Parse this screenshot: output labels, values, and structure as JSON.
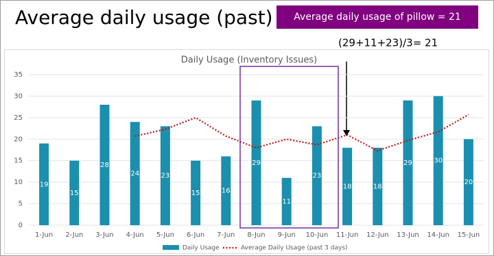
{
  "page_title": "Average daily usage (past)",
  "callout": "Average daily usage of pillow = 21",
  "annotation": "(29+11+23)/3= 21",
  "chart_data": {
    "type": "bar",
    "title": "Daily Usage (Inventory Issues)",
    "categories": [
      "1-Jun",
      "2-Jun",
      "3-Jun",
      "4-Jun",
      "5-Jun",
      "6-Jun",
      "7-Jun",
      "8-Jun",
      "9-Jun",
      "10-Jun",
      "11-Jun",
      "12-Jun",
      "13-Jun",
      "14-Jun",
      "15-Jun"
    ],
    "series": [
      {
        "name": "Daily Usage",
        "type": "bar",
        "color": "#1b8fae",
        "values": [
          19,
          15,
          28,
          24,
          23,
          15,
          16,
          29,
          11,
          23,
          18,
          18,
          29,
          30,
          20
        ]
      },
      {
        "name": "Average Daily Usage (past 3 days)",
        "type": "line",
        "color": "#c0120c",
        "values": [
          null,
          null,
          null,
          20.7,
          22.3,
          25,
          20.7,
          18,
          20,
          18.7,
          21,
          17.3,
          19.7,
          21.7,
          25.7
        ]
      }
    ],
    "ylim": [
      0,
      35
    ],
    "yticks": [
      0,
      5,
      10,
      15,
      20,
      25,
      30,
      35
    ],
    "grid": true,
    "data_labels": true,
    "legend": "bottom"
  }
}
